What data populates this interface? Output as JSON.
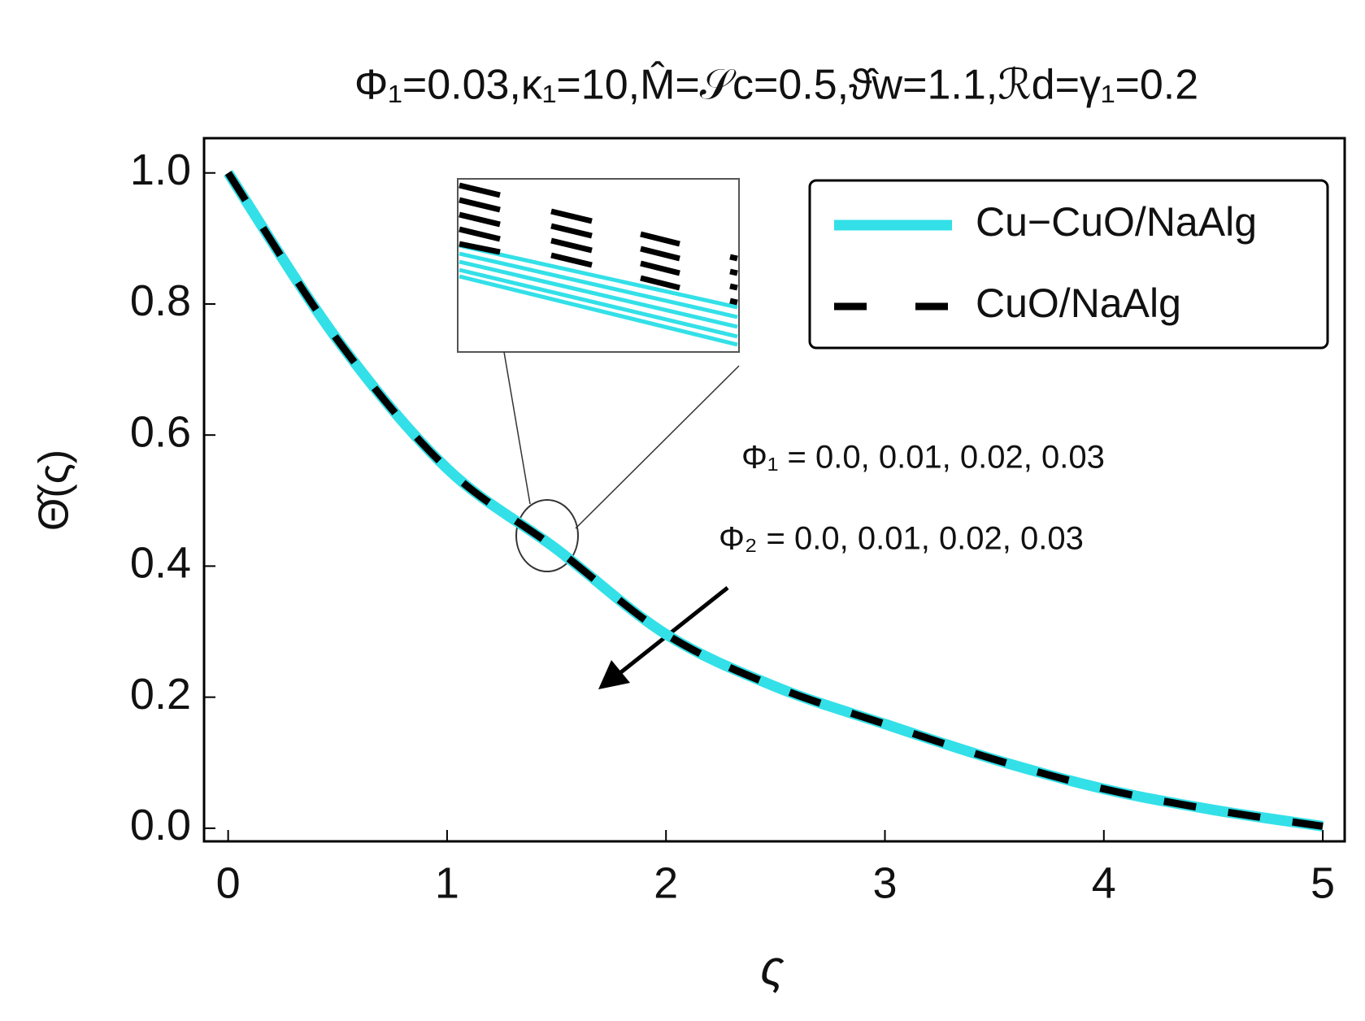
{
  "chart_data": {
    "type": "line",
    "title": "Φ₁=0.03,κ₁=10,M̂=𝒮c=0.5,ϑ̂w=1.1,ℛd=γ₁=0.2",
    "x_label": "ς",
    "y_label": "Θ̂(ς)",
    "x": [
      0,
      0.5,
      1,
      1.5,
      2,
      2.5,
      3,
      3.5,
      4,
      4.5,
      5
    ],
    "series": [
      {
        "name": "Cu−CuO/NaAlg",
        "color": "#33e0e8",
        "dash": false,
        "values": [
          1.0,
          0.745,
          0.549,
          0.426,
          0.296,
          0.216,
          0.159,
          0.105,
          0.06,
          0.028,
          0.003
        ]
      },
      {
        "name": "CuO/NaAlg",
        "color": "#000000",
        "dash": true,
        "values": [
          1.0,
          0.745,
          0.549,
          0.426,
          0.296,
          0.216,
          0.159,
          0.105,
          0.06,
          0.028,
          0.003
        ]
      }
    ],
    "annotations": [
      "Φ₁ = 0.0, 0.01, 0.02, 0.03",
      "Φ₂ = 0.0, 0.01, 0.02, 0.03"
    ],
    "xlim": [
      -0.11,
      5.1
    ],
    "ylim": [
      -0.02,
      1.053
    ],
    "xticks": [
      0,
      1,
      2,
      3,
      4,
      5
    ],
    "yticks": [
      {
        "value": 0,
        "label": "0.0"
      },
      0.2,
      0.4,
      0.6,
      0.8,
      {
        "value": 1,
        "label": "1.0"
      }
    ],
    "grid": false,
    "legend": "upper right"
  }
}
